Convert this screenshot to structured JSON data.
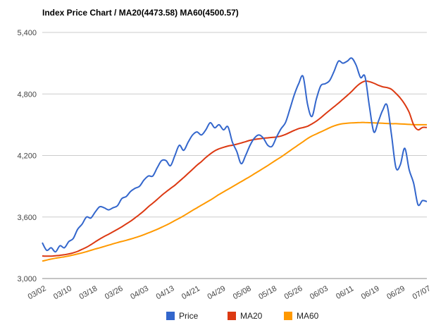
{
  "chart_data": {
    "type": "line",
    "title": "Index Price Chart / MA20(4473.58) MA60(4500.57)",
    "xlabel": "",
    "ylabel": "",
    "ylim": [
      3000,
      5400
    ],
    "yticks": [
      3000,
      3600,
      4200,
      4800,
      5400
    ],
    "ytick_labels": [
      "3,000",
      "3,600",
      "4,200",
      "4,800",
      "5,400"
    ],
    "xtick_labels": [
      "03/02",
      "03/10",
      "03/18",
      "03/26",
      "04/03",
      "04/13",
      "04/21",
      "04/29",
      "05/08",
      "05/18",
      "05/26",
      "06/03",
      "06/11",
      "06/19",
      "06/29",
      "07/07"
    ],
    "grid": true,
    "legend_position": "bottom",
    "colors": {
      "Price": "#3366cc",
      "MA20": "#dc3912",
      "MA60": "#ff9900"
    },
    "series": [
      {
        "name": "Price",
        "values": [
          3350,
          3275,
          3300,
          3260,
          3320,
          3300,
          3360,
          3390,
          3480,
          3530,
          3600,
          3590,
          3650,
          3700,
          3690,
          3670,
          3690,
          3710,
          3780,
          3800,
          3850,
          3880,
          3900,
          3960,
          4000,
          4000,
          4080,
          4150,
          4150,
          4100,
          4200,
          4300,
          4250,
          4330,
          4400,
          4430,
          4400,
          4450,
          4520,
          4470,
          4500,
          4450,
          4480,
          4330,
          4240,
          4120,
          4200,
          4300,
          4370,
          4400,
          4370,
          4300,
          4290,
          4380,
          4460,
          4520,
          4650,
          4790,
          4900,
          4970,
          4700,
          4580,
          4750,
          4880,
          4900,
          4930,
          5020,
          5120,
          5100,
          5120,
          5150,
          5080,
          4960,
          4970,
          4680,
          4430,
          4530,
          4640,
          4690,
          4400,
          4080,
          4110,
          4270,
          4060,
          3930,
          3720,
          3760,
          3750
        ]
      },
      {
        "name": "MA20",
        "values": [
          3220,
          3218,
          3219,
          3222,
          3226,
          3232,
          3240,
          3250,
          3265,
          3285,
          3305,
          3330,
          3358,
          3385,
          3410,
          3432,
          3455,
          3480,
          3505,
          3532,
          3560,
          3592,
          3625,
          3660,
          3700,
          3735,
          3772,
          3810,
          3845,
          3878,
          3910,
          3948,
          3985,
          4025,
          4065,
          4105,
          4140,
          4180,
          4215,
          4245,
          4265,
          4280,
          4292,
          4300,
          4310,
          4322,
          4335,
          4348,
          4356,
          4362,
          4368,
          4372,
          4376,
          4381,
          4390,
          4405,
          4425,
          4445,
          4462,
          4472,
          4485,
          4508,
          4535,
          4568,
          4605,
          4640,
          4675,
          4710,
          4748,
          4785,
          4825,
          4870,
          4905,
          4925,
          4920,
          4905,
          4885,
          4870,
          4862,
          4845,
          4805,
          4760,
          4700,
          4620,
          4500,
          4450,
          4473,
          4473
        ]
      },
      {
        "name": "MA60",
        "values": [
          3170,
          3180,
          3190,
          3198,
          3205,
          3212,
          3220,
          3230,
          3240,
          3250,
          3262,
          3275,
          3288,
          3300,
          3312,
          3325,
          3338,
          3350,
          3362,
          3373,
          3385,
          3398,
          3412,
          3428,
          3445,
          3462,
          3480,
          3500,
          3520,
          3542,
          3565,
          3588,
          3612,
          3638,
          3665,
          3690,
          3715,
          3740,
          3765,
          3792,
          3820,
          3845,
          3870,
          3895,
          3920,
          3945,
          3970,
          3995,
          4022,
          4048,
          4075,
          4102,
          4130,
          4158,
          4185,
          4215,
          4245,
          4275,
          4305,
          4335,
          4365,
          4390,
          4410,
          4430,
          4450,
          4470,
          4488,
          4502,
          4510,
          4515,
          4518,
          4520,
          4522,
          4522,
          4520,
          4518,
          4516,
          4514,
          4512,
          4510,
          4510,
          4508,
          4506,
          4503,
          4501,
          4500,
          4500,
          4500
        ]
      }
    ]
  }
}
